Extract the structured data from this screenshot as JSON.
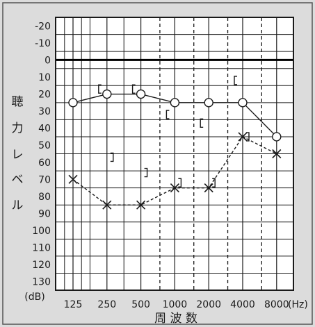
{
  "chart_data": {
    "type": "line",
    "title": "",
    "xlabel": "周 波 数",
    "xunit": "(Hz)",
    "ylabel_chars": [
      "聴",
      "力",
      "レ",
      "ベ",
      "ル"
    ],
    "yunit": "(dB)",
    "x_categories": [
      "125",
      "250",
      "500",
      "1000",
      "2000",
      "4000",
      "8000"
    ],
    "y_ticks": [
      "-20",
      "-10",
      "0",
      "10",
      "20",
      "30",
      "40",
      "50",
      "60",
      "70",
      "80",
      "90",
      "100",
      "110",
      "120",
      "130"
    ],
    "ylim": [
      -25,
      135
    ],
    "y_inverted": true,
    "series": [
      {
        "marker": "circle",
        "line": "solid",
        "points": [
          {
            "x": "125",
            "y": 25
          },
          {
            "x": "250",
            "y": 20
          },
          {
            "x": "500",
            "y": 20
          },
          {
            "x": "1000",
            "y": 25
          },
          {
            "x": "2000",
            "y": 25
          },
          {
            "x": "4000",
            "y": 25
          },
          {
            "x": "8000",
            "y": 45
          }
        ]
      },
      {
        "marker": "cross",
        "line": "dashed",
        "points": [
          {
            "x": "125",
            "y": 70
          },
          {
            "x": "250",
            "y": 85
          },
          {
            "x": "500",
            "y": 85
          },
          {
            "x": "1000",
            "y": 75
          },
          {
            "x": "2000",
            "y": 75
          },
          {
            "x": "4000",
            "y": 45
          },
          {
            "x": "8000",
            "y": 55
          }
        ]
      },
      {
        "marker": "left-bracket",
        "line": "none",
        "points": [
          {
            "x": "250",
            "y": 17
          },
          {
            "x": "500",
            "y": 17
          },
          {
            "x": "1000",
            "y": 32
          },
          {
            "x": "2000",
            "y": 37
          },
          {
            "x": "4000",
            "y": 12
          }
        ]
      },
      {
        "marker": "right-bracket",
        "line": "none",
        "points": [
          {
            "x": "250",
            "y": 57
          },
          {
            "x": "500",
            "y": 66
          },
          {
            "x": "1000",
            "y": 72
          },
          {
            "x": "2000",
            "y": 72
          },
          {
            "x": "4000",
            "y": 45
          }
        ]
      }
    ],
    "grid": true,
    "minor_dashed_x": [
      "750",
      "1500",
      "3000",
      "6000"
    ],
    "colors": {
      "background": "#dcdcdc",
      "plot": "#ffffff",
      "ink": "#1a1a1a",
      "zero_line": "#000000"
    }
  }
}
